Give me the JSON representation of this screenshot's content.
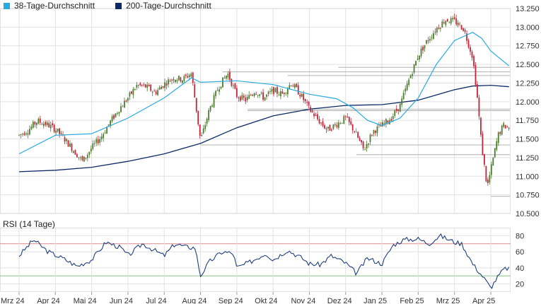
{
  "legend": [
    {
      "label": "38-Tage-Durchschnitt",
      "color": "#29a9e1"
    },
    {
      "label": "200-Tage-Durchschnitt",
      "color": "#0b2a66"
    }
  ],
  "colors": {
    "up": "#4c7d2f",
    "down": "#c0263a",
    "ma38": "#29a9e1",
    "ma200": "#0b2a66",
    "rsi": "#1f3f7f",
    "rsi_upper_line": "#d98a8a",
    "rsi_lower_line": "#8ac48a",
    "grid": "#e1e1e1",
    "level": "#b0b0b0"
  },
  "chart_data": [
    {
      "type": "candlestick",
      "title": "",
      "ylim": [
        10.5,
        13.25
      ],
      "y_ticks": [
        "13.250",
        "13.000",
        "12.750",
        "12.500",
        "12.250",
        "12.000",
        "11.750",
        "11.500",
        "11.250",
        "11.000",
        "10.750",
        "10.500"
      ],
      "x_ticks": [
        "Mrz 24",
        "Apr 24",
        "Mai 24",
        "Jun 24",
        "Jul 24",
        "Aug 24",
        "Sep 24",
        "Okt 24",
        "Nov 24",
        "Dez 24",
        "Jan 25",
        "Feb 25",
        "Mrz 25",
        "Apr 25"
      ],
      "price_path": [
        [
          0,
          11.55
        ],
        [
          0.25,
          11.62
        ],
        [
          0.5,
          11.74
        ],
        [
          0.75,
          11.7
        ],
        [
          1,
          11.63
        ],
        [
          1.25,
          11.5
        ],
        [
          1.5,
          11.35
        ],
        [
          1.75,
          11.2
        ],
        [
          2,
          11.38
        ],
        [
          2.25,
          11.52
        ],
        [
          2.5,
          11.72
        ],
        [
          2.75,
          11.9
        ],
        [
          3,
          12.05
        ],
        [
          3.25,
          12.22
        ],
        [
          3.5,
          12.2
        ],
        [
          3.75,
          12.12
        ],
        [
          4,
          12.24
        ],
        [
          4.25,
          12.32
        ],
        [
          4.5,
          12.3
        ],
        [
          4.75,
          12.38
        ],
        [
          5,
          11.48
        ],
        [
          5.25,
          11.9
        ],
        [
          5.5,
          12.2
        ],
        [
          5.75,
          12.38
        ],
        [
          6,
          12.08
        ],
        [
          6.25,
          12.02
        ],
        [
          6.5,
          12.15
        ],
        [
          6.75,
          12.05
        ],
        [
          7,
          12.15
        ],
        [
          7.25,
          12.1
        ],
        [
          7.5,
          12.25
        ],
        [
          7.75,
          12.1
        ],
        [
          8,
          11.9
        ],
        [
          8.25,
          11.75
        ],
        [
          8.5,
          11.62
        ],
        [
          8.75,
          11.7
        ],
        [
          9,
          11.78
        ],
        [
          9.25,
          11.6
        ],
        [
          9.5,
          11.35
        ],
        [
          9.75,
          11.6
        ],
        [
          10,
          11.68
        ],
        [
          10.25,
          11.78
        ],
        [
          10.5,
          11.95
        ],
        [
          10.75,
          12.3
        ],
        [
          11,
          12.62
        ],
        [
          11.25,
          12.82
        ],
        [
          11.5,
          12.98
        ],
        [
          11.75,
          13.1
        ],
        [
          12,
          13.08
        ],
        [
          12.25,
          12.98
        ],
        [
          12.5,
          12.6
        ],
        [
          12.62,
          12.1
        ],
        [
          12.75,
          11.4
        ],
        [
          12.9,
          10.85
        ],
        [
          13.05,
          11.2
        ],
        [
          13.2,
          11.55
        ],
        [
          13.35,
          11.68
        ],
        [
          13.5,
          11.65
        ]
      ],
      "ma38": [
        [
          0,
          11.3
        ],
        [
          1,
          11.55
        ],
        [
          2,
          11.57
        ],
        [
          3,
          11.78
        ],
        [
          4,
          12.05
        ],
        [
          4.75,
          12.32
        ],
        [
          5,
          12.26
        ],
        [
          6,
          12.28
        ],
        [
          7,
          12.23
        ],
        [
          8,
          12.1
        ],
        [
          8.75,
          12.04
        ],
        [
          9.2,
          11.92
        ],
        [
          9.6,
          11.75
        ],
        [
          10,
          11.68
        ],
        [
          10.5,
          11.78
        ],
        [
          11,
          12.05
        ],
        [
          11.5,
          12.5
        ],
        [
          12,
          12.82
        ],
        [
          12.5,
          12.93
        ],
        [
          12.75,
          12.85
        ],
        [
          13,
          12.68
        ],
        [
          13.5,
          12.48
        ]
      ],
      "ma200": [
        [
          0,
          11.06
        ],
        [
          1,
          11.08
        ],
        [
          2,
          11.12
        ],
        [
          3,
          11.2
        ],
        [
          4,
          11.3
        ],
        [
          5,
          11.44
        ],
        [
          6,
          11.65
        ],
        [
          7,
          11.81
        ],
        [
          8,
          11.9
        ],
        [
          9,
          11.95
        ],
        [
          10,
          11.96
        ],
        [
          11,
          12.02
        ],
        [
          12,
          12.16
        ],
        [
          12.5,
          12.21
        ],
        [
          13,
          12.22
        ],
        [
          13.5,
          12.2
        ]
      ],
      "levels": [
        12.46,
        12.4,
        12.35,
        11.9,
        11.88,
        11.42,
        11.29,
        10.73
      ]
    },
    {
      "type": "line",
      "title": "RSI (14 Tage)",
      "ylim": [
        10,
        90
      ],
      "y_ticks": [
        "80",
        "60",
        "40",
        "20"
      ],
      "reference_lines": [
        70,
        30
      ],
      "rsi": [
        [
          0,
          55
        ],
        [
          0.4,
          75
        ],
        [
          0.8,
          60
        ],
        [
          1.2,
          52
        ],
        [
          1.6,
          42
        ],
        [
          2,
          50
        ],
        [
          2.4,
          72
        ],
        [
          2.8,
          65
        ],
        [
          3,
          55
        ],
        [
          3.4,
          70
        ],
        [
          3.8,
          60
        ],
        [
          4,
          55
        ],
        [
          4.3,
          70
        ],
        [
          4.6,
          66
        ],
        [
          4.85,
          65
        ],
        [
          5,
          30
        ],
        [
          5.25,
          48
        ],
        [
          5.6,
          60
        ],
        [
          5.9,
          58
        ],
        [
          6,
          40
        ],
        [
          6.4,
          48
        ],
        [
          6.8,
          58
        ],
        [
          7,
          50
        ],
        [
          7.4,
          62
        ],
        [
          7.8,
          52
        ],
        [
          8,
          45
        ],
        [
          8.3,
          44
        ],
        [
          8.6,
          55
        ],
        [
          9,
          46
        ],
        [
          9.3,
          33
        ],
        [
          9.6,
          52
        ],
        [
          10,
          45
        ],
        [
          10.3,
          68
        ],
        [
          10.6,
          75
        ],
        [
          11,
          76
        ],
        [
          11.3,
          70
        ],
        [
          11.6,
          80
        ],
        [
          12,
          72
        ],
        [
          12.2,
          70
        ],
        [
          12.5,
          45
        ],
        [
          12.8,
          28
        ],
        [
          13,
          15
        ],
        [
          13.15,
          26
        ],
        [
          13.35,
          38
        ],
        [
          13.5,
          40
        ]
      ]
    }
  ]
}
